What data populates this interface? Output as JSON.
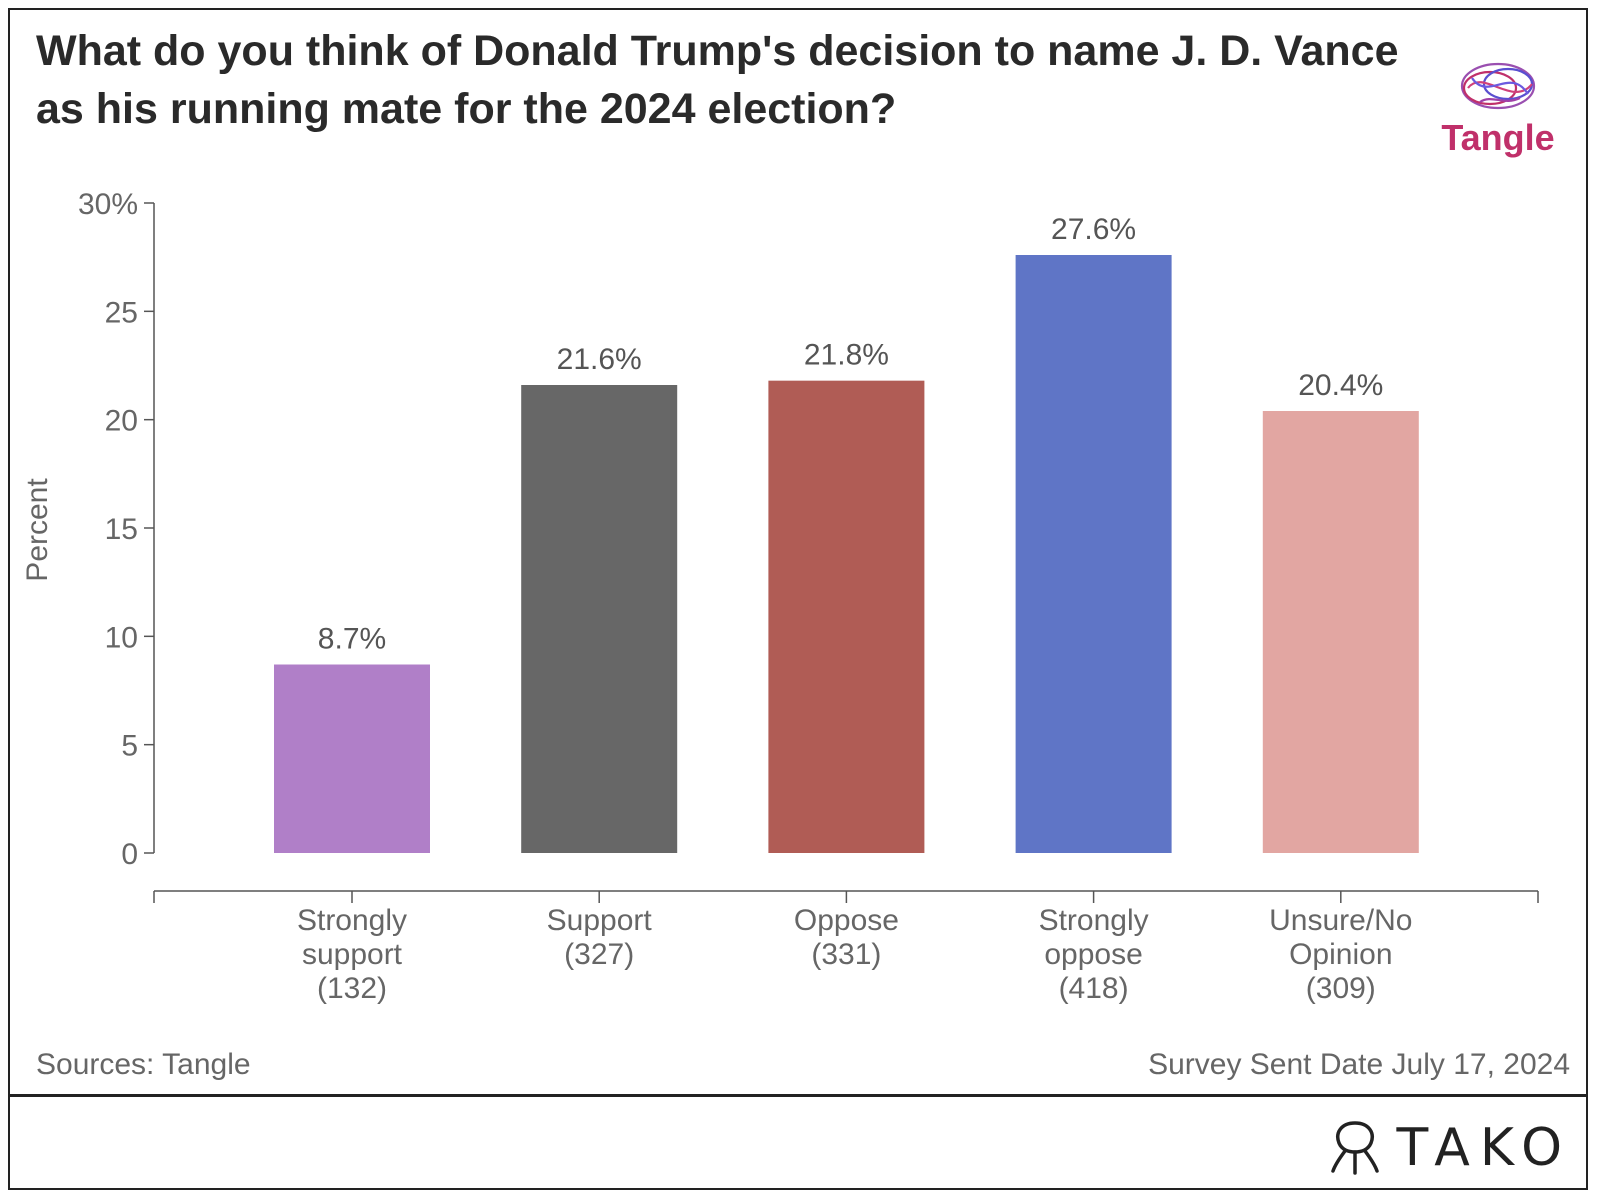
{
  "title": "What do you think of Donald Trump's decision to name J. D. Vance as his running mate for the 2024 election?",
  "logo_text": "Tangle",
  "footer": {
    "source": "Sources: Tangle",
    "date": "Survey Sent Date July 17, 2024",
    "brand": "TAKO",
    "brand_icon": "tako-octopus-icon"
  },
  "chart_data": {
    "type": "bar",
    "title": "What do you think of Donald Trump's decision to name J. D. Vance as his running mate for the 2024 election?",
    "xlabel": "",
    "ylabel": "Percent",
    "ylim": [
      0,
      30
    ],
    "yticks": [
      0,
      5,
      10,
      15,
      20,
      25,
      30
    ],
    "ytick_labels": [
      "0",
      "5",
      "10",
      "15",
      "20",
      "25",
      "30%"
    ],
    "grid": false,
    "categories": [
      [
        "Strongly",
        "support",
        "(132)"
      ],
      [
        "Support",
        "(327)"
      ],
      [
        "Oppose",
        "(331)"
      ],
      [
        "Strongly",
        "oppose",
        "(418)"
      ],
      [
        "Unsure/No",
        "Opinion",
        "(309)"
      ]
    ],
    "values": [
      8.7,
      21.6,
      21.8,
      27.6,
      20.4
    ],
    "data_labels": [
      "8.7%",
      "21.6%",
      "21.8%",
      "27.6%",
      "20.4%"
    ],
    "colors": [
      "#b07fc8",
      "#676767",
      "#b05c55",
      "#5f75c6",
      "#e2a6a2"
    ]
  }
}
